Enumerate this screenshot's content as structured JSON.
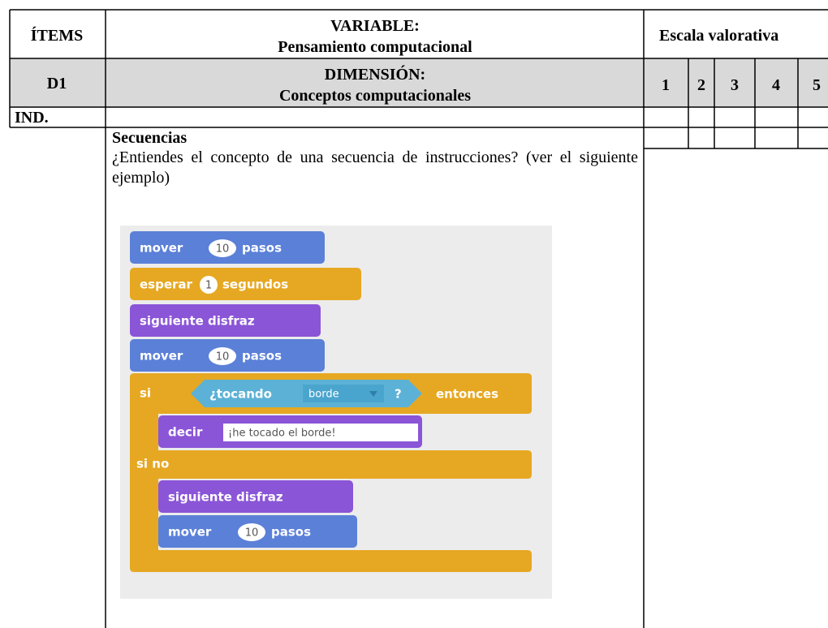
{
  "table": {
    "header": {
      "items": "ÍTEMS",
      "variable_label": "VARIABLE:",
      "variable": "Pensamiento computacional",
      "scale": "Escala valorativa"
    },
    "dimension": {
      "code": "D1",
      "label": "DIMENSIÓN:",
      "name": "Conceptos computacionales",
      "scale_points": [
        1,
        2,
        3,
        4,
        5
      ]
    },
    "indicator": {
      "label": "IND.",
      "name": "Secuencias"
    },
    "question": "¿Entiendes el concepto de una secuencia de instrucciones? (ver el siguiente ejemplo)"
  },
  "scratch": {
    "blocks": [
      {
        "label": "mover",
        "input": 10,
        "suffix": "pasos"
      },
      {
        "label": "esperar",
        "input": 1,
        "suffix": "segundos"
      },
      {
        "label": "siguiente disfraz"
      },
      {
        "label": "mover",
        "input": 10,
        "suffix": "pasos"
      },
      {
        "label": "si",
        "condition": "¿tocando",
        "option": "borde",
        "mark": "?",
        "suffix": "entonces"
      },
      {
        "label": "decir",
        "text": "¡he tocado el borde!"
      },
      {
        "label": "si no"
      },
      {
        "label": "siguiente disfraz"
      },
      {
        "label": "mover",
        "input": 10,
        "suffix": "pasos"
      }
    ]
  }
}
